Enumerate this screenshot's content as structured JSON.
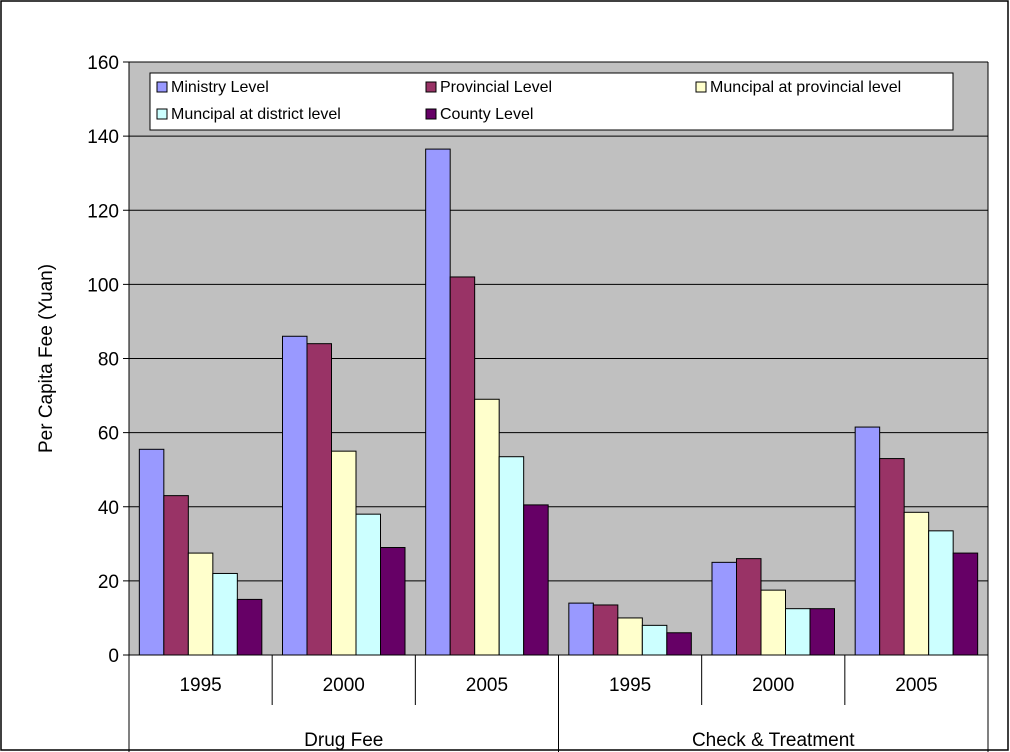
{
  "chart_data": {
    "type": "bar",
    "title": "",
    "ylabel": "Per Capita Fee (Yuan)",
    "xlabel": "",
    "ylim": [
      0,
      160
    ],
    "yticks": [
      "0",
      "20",
      "40",
      "60",
      "80",
      "100",
      "120",
      "140",
      "160"
    ],
    "grid": true,
    "legend_position": "top",
    "groups": [
      {
        "label": "Drug Fee",
        "categories": [
          "1995",
          "2000",
          "2005"
        ]
      },
      {
        "label": "Check & Treatment",
        "categories": [
          "1995",
          "2000",
          "2005"
        ]
      }
    ],
    "series": [
      {
        "name": "Ministry Level",
        "color": "#9999ff",
        "values": [
          55.5,
          86,
          136.5,
          14,
          25,
          61.5
        ]
      },
      {
        "name": "Provincial Level",
        "color": "#993366",
        "values": [
          43,
          84,
          102,
          13.5,
          26,
          53
        ]
      },
      {
        "name": "Muncipal at provincial level",
        "color": "#ffffcc",
        "values": [
          27.5,
          55,
          69,
          10,
          17.5,
          38.5
        ]
      },
      {
        "name": "Muncipal at district level",
        "color": "#ccffff",
        "values": [
          22,
          38,
          53.5,
          8,
          12.5,
          33.5
        ]
      },
      {
        "name": "County Level",
        "color": "#660066",
        "values": [
          15,
          29,
          40.5,
          6,
          12.5,
          27.5
        ]
      }
    ],
    "plot_background": "#c0c0c0"
  }
}
